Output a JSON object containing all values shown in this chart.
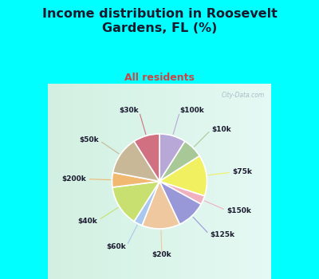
{
  "title": "Income distribution in Roosevelt\nGardens, FL (%)",
  "subtitle": "All residents",
  "title_color": "#1a1a2e",
  "subtitle_color": "#e05050",
  "background_color": "#00ffff",
  "chart_bg_left": "#d0ece0",
  "chart_bg_right": "#e8f8f0",
  "labels": [
    "$100k",
    "$10k",
    "$75k",
    "$150k",
    "$125k",
    "$20k",
    "$60k",
    "$40k",
    "$200k",
    "$50k",
    "$30k"
  ],
  "values": [
    9,
    7,
    14,
    3,
    10,
    13,
    3,
    14,
    5,
    13,
    9
  ],
  "colors": [
    "#b8a8d8",
    "#a8c898",
    "#f0f060",
    "#f0b0c0",
    "#9898d8",
    "#f0c8a0",
    "#a8c8f0",
    "#c8e070",
    "#f0b870",
    "#c8b898",
    "#d07080"
  ],
  "watermark": "City-Data.com",
  "figsize": [
    4.0,
    3.5
  ],
  "dpi": 100,
  "title_fontsize": 11.5,
  "subtitle_fontsize": 9
}
